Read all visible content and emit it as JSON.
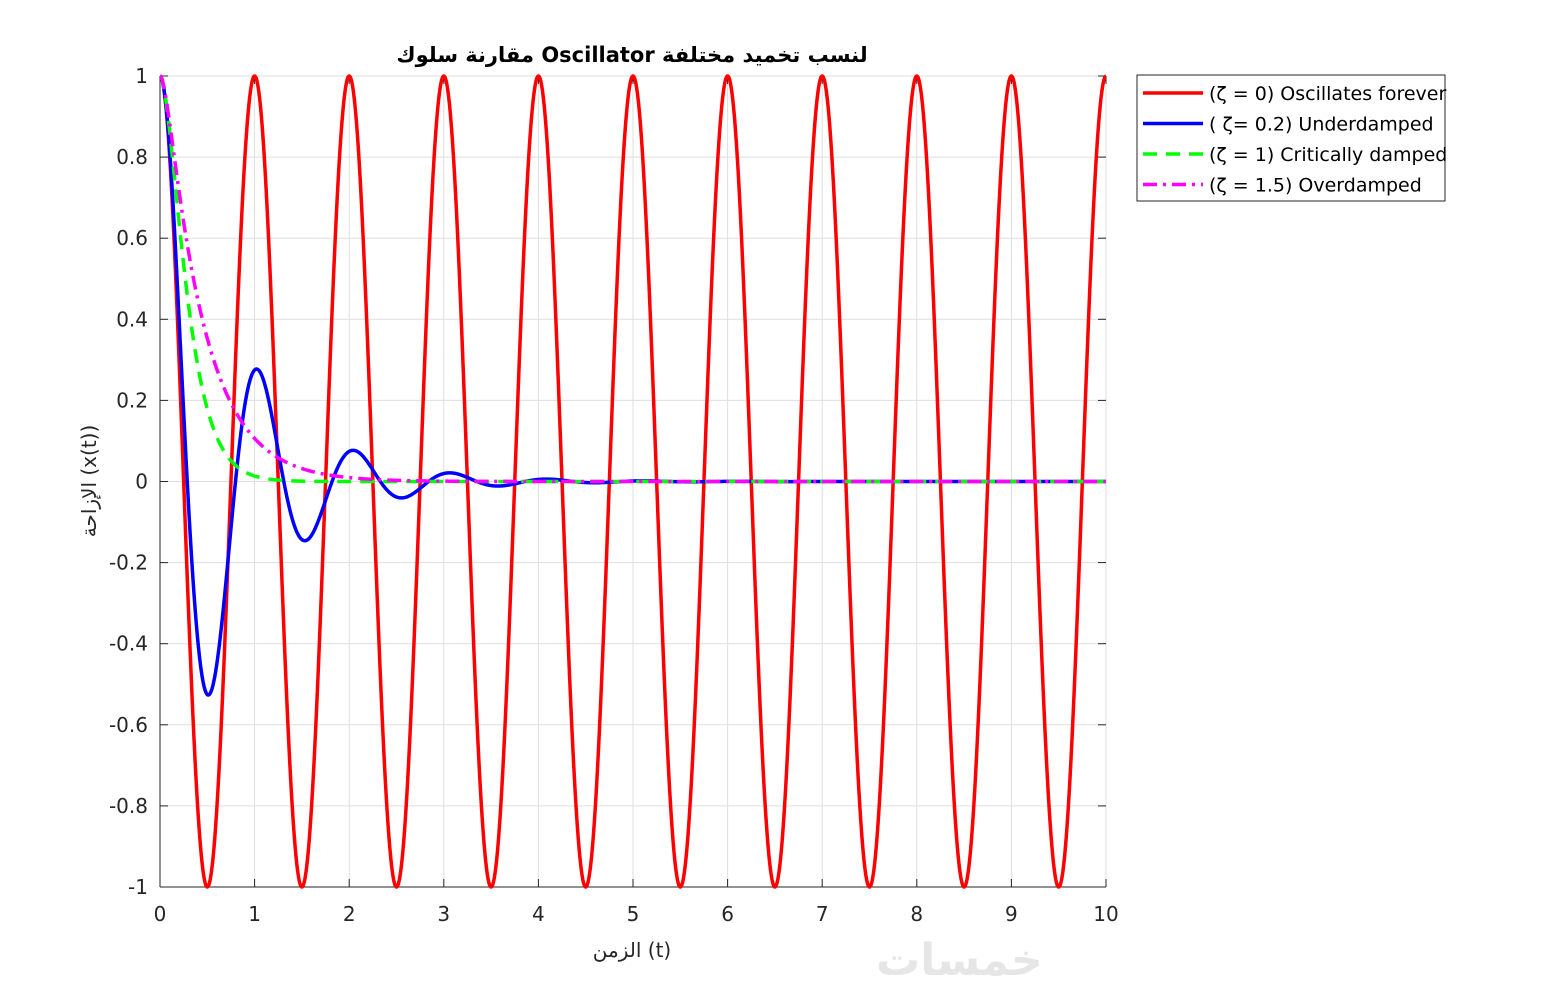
{
  "chart_data": {
    "type": "line",
    "title": "مقارنة سلوك Oscillator لنسب تخميد مختلفة",
    "xlabel": "الزمن (t)",
    "ylabel": "الإزاحة (x(t))",
    "xlim": [
      0,
      10
    ],
    "ylim": [
      -1,
      1
    ],
    "xticks": [
      "0",
      "1",
      "2",
      "3",
      "4",
      "5",
      "6",
      "7",
      "8",
      "9",
      "10"
    ],
    "yticks": [
      "-1",
      "-0.8",
      "-0.6",
      "-0.4",
      "-0.2",
      "0",
      "0.2",
      "0.4",
      "0.6",
      "0.8",
      "1"
    ],
    "grid": true,
    "legend_position": "outside top-right",
    "series": [
      {
        "name": "(ζ = 0) Oscillates forever",
        "color": "#ff0000",
        "style": "solid",
        "x": [
          0,
          0.5,
          1,
          1.5,
          2,
          2.5,
          3,
          3.5,
          4,
          4.5,
          5,
          5.5,
          6,
          6.5,
          7,
          7.5,
          8,
          8.5,
          9,
          9.5,
          10
        ],
        "y": [
          1,
          -1,
          1,
          -1,
          1,
          -1,
          1,
          -1,
          1,
          -1,
          1,
          -1,
          1,
          -1,
          1,
          -1,
          1,
          -1,
          1,
          -1,
          1
        ]
      },
      {
        "name": "( ζ= 0.2) Underdamped",
        "color": "#0000ff",
        "style": "solid",
        "x": [
          0,
          0.26,
          0.5,
          0.76,
          1.02,
          1.27,
          1.53,
          1.78,
          2.04,
          2.29,
          2.55,
          2.8,
          3.06,
          3.31,
          3.57,
          3.82,
          4.08,
          4.33,
          4.59,
          5,
          6,
          7,
          8,
          9,
          10
        ],
        "y": [
          1,
          0.01,
          -0.53,
          0.0,
          0.28,
          0.0,
          -0.15,
          0.0,
          0.08,
          0.0,
          -0.04,
          0.0,
          0.02,
          0.0,
          -0.012,
          0.0,
          0.006,
          0.0,
          -0.003,
          0,
          0,
          0,
          0,
          0,
          0
        ]
      },
      {
        "name": "(ζ = 1) Critically damped",
        "color": "#00ff00",
        "style": "dashed",
        "x": [
          0,
          0.1,
          0.2,
          0.3,
          0.4,
          0.5,
          0.6,
          0.7,
          0.8,
          0.9,
          1.0,
          1.2,
          1.4,
          1.6,
          2,
          3,
          4,
          5,
          6,
          7,
          8,
          9,
          10
        ],
        "y": [
          1,
          0.87,
          0.64,
          0.44,
          0.29,
          0.18,
          0.11,
          0.07,
          0.04,
          0.023,
          0.013,
          0.004,
          0.001,
          0.0004,
          0,
          0,
          0,
          0,
          0,
          0,
          0,
          0,
          0
        ]
      },
      {
        "name": "(ζ = 1.5) Overdamped",
        "color": "#ff00ff",
        "style": "dashdot",
        "x": [
          0,
          0.1,
          0.2,
          0.3,
          0.4,
          0.5,
          0.6,
          0.7,
          0.8,
          0.9,
          1.0,
          1.2,
          1.4,
          1.6,
          1.8,
          2.0,
          2.5,
          3,
          4,
          5,
          6,
          7,
          8,
          9,
          10
        ],
        "y": [
          1,
          0.94,
          0.81,
          0.66,
          0.53,
          0.42,
          0.33,
          0.26,
          0.2,
          0.16,
          0.12,
          0.074,
          0.045,
          0.027,
          0.016,
          0.01,
          0.003,
          0.001,
          0,
          0,
          0,
          0,
          0,
          0,
          0
        ]
      }
    ]
  },
  "watermark": {
    "text": "خمسات"
  }
}
